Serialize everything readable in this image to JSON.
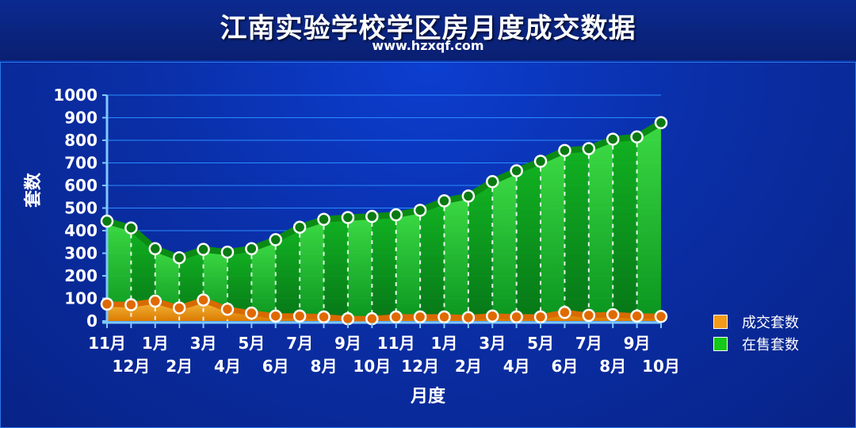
{
  "header": {
    "title": "江南实验学校学区房月度成交数据",
    "subtitle": "www.hzxqf.com"
  },
  "colors": {
    "sold": "#f59a1a",
    "sold_dark": "#d86a00",
    "onsale": "#16c81a",
    "onsale_dark": "#0a8c12",
    "grid": "#2a8cff",
    "axis": "#7ec8ff"
  },
  "chart_data": {
    "type": "area",
    "xlabel": "月度",
    "ylabel": "套数",
    "ylim": [
      0,
      1000
    ],
    "yticks": [
      0,
      100,
      200,
      300,
      400,
      500,
      600,
      700,
      800,
      900,
      1000
    ],
    "categories": [
      "11月",
      "12月",
      "1月",
      "2月",
      "3月",
      "4月",
      "5月",
      "6月",
      "7月",
      "8月",
      "9月",
      "10月",
      "11月",
      "12月",
      "1月",
      "2月",
      "3月",
      "4月",
      "5月",
      "6月",
      "7月",
      "8月",
      "9月",
      "10月"
    ],
    "series": [
      {
        "name": "成交套数",
        "values": [
          75,
          72,
          88,
          58,
          93,
          52,
          35,
          22,
          22,
          18,
          10,
          10,
          18,
          18,
          18,
          15,
          22,
          18,
          18,
          38,
          25,
          28,
          22,
          20
        ]
      },
      {
        "name": "在售套数",
        "values": [
          442,
          412,
          320,
          280,
          317,
          305,
          320,
          360,
          415,
          450,
          458,
          463,
          470,
          490,
          532,
          553,
          617,
          665,
          707,
          755,
          763,
          805,
          815,
          878
        ]
      }
    ],
    "legend_position": "bottom-right",
    "grid": true
  }
}
